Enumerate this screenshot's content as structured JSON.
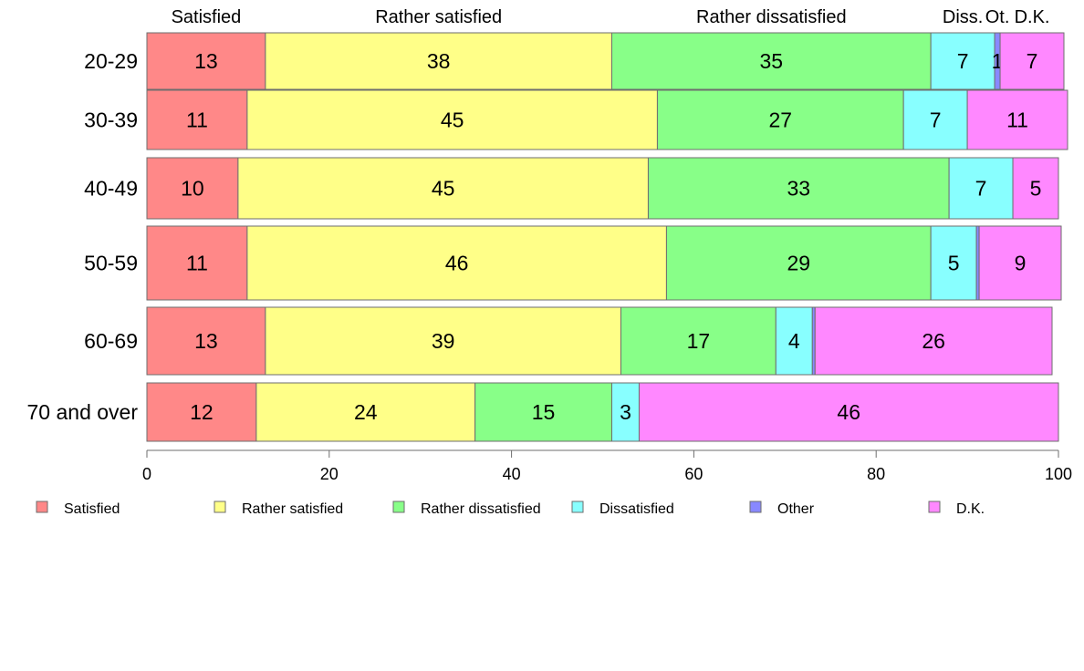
{
  "chart_data": {
    "type": "bar",
    "orientation": "horizontal",
    "stacked": true,
    "title": "",
    "xlabel": "",
    "ylabel": "",
    "xlim": [
      0,
      100
    ],
    "x_ticks": [
      0,
      20,
      40,
      60,
      80,
      100
    ],
    "x_tick_labels": [
      "0",
      "20",
      "40",
      "60",
      "80",
      "100"
    ],
    "grid": false,
    "legend_position": "bottom",
    "categories": [
      "20-29",
      "30-39",
      "40-49",
      "50-59",
      "60-69",
      "70 and over"
    ],
    "top_labels": [
      "Satisfied",
      "Rather satisfied",
      "Rather dissatisfied",
      "Diss.",
      "Ot.",
      "D.K."
    ],
    "series": [
      {
        "name": "Satisfied",
        "color": "#ff8888",
        "values": [
          13,
          11,
          10,
          11,
          13,
          12
        ],
        "labels": [
          "13",
          "11",
          "10",
          "11",
          "13",
          "12"
        ]
      },
      {
        "name": "Rather satisfied",
        "color": "#ffff88",
        "values": [
          38,
          45,
          45,
          46,
          39,
          24
        ],
        "labels": [
          "38",
          "45",
          "45",
          "46",
          "39",
          "24"
        ]
      },
      {
        "name": "Rather dissatisfied",
        "color": "#88ff88",
        "values": [
          35,
          27,
          33,
          29,
          17,
          15
        ],
        "labels": [
          "35",
          "27",
          "33",
          "29",
          "17",
          "15"
        ]
      },
      {
        "name": "Dissatisfied",
        "color": "#88ffff",
        "values": [
          7,
          7,
          7,
          5,
          4,
          3
        ],
        "labels": [
          "7",
          "7",
          "7",
          "5",
          "4",
          "3"
        ]
      },
      {
        "name": "Other",
        "color": "#8888ff",
        "values": [
          0.6,
          0,
          0,
          0.3,
          0.3,
          0
        ],
        "labels": [
          "1",
          "",
          "",
          "",
          "",
          ""
        ]
      },
      {
        "name": "D.K.",
        "color": "#ff88ff",
        "values": [
          7,
          11,
          5,
          9,
          26,
          46
        ],
        "labels": [
          "7",
          "11",
          "5",
          "9",
          "26",
          "46"
        ]
      }
    ]
  }
}
